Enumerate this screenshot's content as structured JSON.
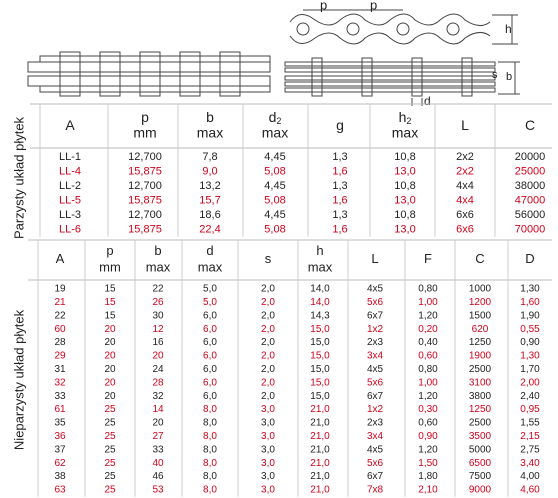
{
  "drawing": {
    "labels": [
      "p",
      "p",
      "h",
      "s",
      "b",
      "d"
    ]
  },
  "table1": {
    "side_label": "Parzysty układ płytek",
    "header": [
      {
        "main": "A"
      },
      {
        "main": "p",
        "unit": "mm"
      },
      {
        "main": "b",
        "unit": "max"
      },
      {
        "main": "d",
        "sub": "2",
        "unit": "max"
      },
      {
        "main": "g"
      },
      {
        "main": "h",
        "sub": "2",
        "unit": "max"
      },
      {
        "main": "L"
      },
      {
        "main": "C"
      }
    ],
    "rows": [
      {
        "color": "#222",
        "cells": [
          "LL-1",
          "12,700",
          "7,8",
          "4,45",
          "1,3",
          "10,8",
          "2x2",
          "20000"
        ]
      },
      {
        "color": "#d0021b",
        "cells": [
          "LL-4",
          "15,875",
          "9,0",
          "5,08",
          "1,6",
          "13,0",
          "2x2",
          "25000"
        ]
      },
      {
        "color": "#222",
        "cells": [
          "LL-2",
          "12,700",
          "13,2",
          "4,45",
          "1,3",
          "10,8",
          "4x4",
          "38000"
        ]
      },
      {
        "color": "#d0021b",
        "cells": [
          "LL-5",
          "15,875",
          "15,7",
          "5,08",
          "1,6",
          "13,0",
          "4x4",
          "47000"
        ]
      },
      {
        "color": "#222",
        "cells": [
          "LL-3",
          "12,700",
          "18,6",
          "4,45",
          "1,3",
          "10,8",
          "6x6",
          "56000"
        ]
      },
      {
        "color": "#d0021b",
        "cells": [
          "LL-6",
          "15,875",
          "22,4",
          "5,08",
          "1,6",
          "13,0",
          "6x6",
          "70000"
        ]
      }
    ]
  },
  "table2": {
    "side_label": "Nieparzysty układ płytek",
    "header": [
      {
        "main": "A"
      },
      {
        "main": "p",
        "unit": "mm"
      },
      {
        "main": "b",
        "unit": "max"
      },
      {
        "main": "d",
        "unit": "max"
      },
      {
        "main": "s"
      },
      {
        "main": "h",
        "unit": "max"
      },
      {
        "main": "L"
      },
      {
        "main": "F"
      },
      {
        "main": "C"
      },
      {
        "main": "D"
      }
    ],
    "rows": [
      {
        "color": "#222",
        "cells": [
          "19",
          "15",
          "22",
          "5,0",
          "2,0",
          "14,0",
          "4x5",
          "0,80",
          "1000",
          "1,30"
        ]
      },
      {
        "color": "#d0021b",
        "cells": [
          "21",
          "15",
          "26",
          "5,0",
          "2,0",
          "14,0",
          "5x6",
          "1,00",
          "1200",
          "1,60"
        ]
      },
      {
        "color": "#222",
        "cells": [
          "22",
          "15",
          "30",
          "6,0",
          "2,0",
          "14,3",
          "6x7",
          "1,20",
          "1500",
          "1,90"
        ]
      },
      {
        "color": "#d0021b",
        "cells": [
          "60",
          "20",
          "12",
          "6,0",
          "2,0",
          "15,0",
          "1x2",
          "0,20",
          "620",
          "0,55"
        ]
      },
      {
        "color": "#222",
        "cells": [
          "28",
          "20",
          "16",
          "6,0",
          "2,0",
          "15,0",
          "2x3",
          "0,40",
          "1250",
          "0,90"
        ]
      },
      {
        "color": "#d0021b",
        "cells": [
          "29",
          "20",
          "20",
          "6,0",
          "2,0",
          "15,0",
          "3x4",
          "0,60",
          "1900",
          "1,30"
        ]
      },
      {
        "color": "#222",
        "cells": [
          "31",
          "20",
          "24",
          "6,0",
          "2,0",
          "15,0",
          "4x5",
          "0,80",
          "2500",
          "1,70"
        ]
      },
      {
        "color": "#d0021b",
        "cells": [
          "32",
          "20",
          "28",
          "6,0",
          "2,0",
          "15,0",
          "5x6",
          "1,00",
          "3100",
          "2,00"
        ]
      },
      {
        "color": "#222",
        "cells": [
          "33",
          "20",
          "32",
          "6,0",
          "2,0",
          "15,0",
          "6x7",
          "1,20",
          "3800",
          "2,40"
        ]
      },
      {
        "color": "#d0021b",
        "cells": [
          "61",
          "25",
          "14",
          "8,0",
          "3,0",
          "21,0",
          "1x2",
          "0,30",
          "1250",
          "0,95"
        ]
      },
      {
        "color": "#222",
        "cells": [
          "35",
          "25",
          "20",
          "8,0",
          "3,0",
          "21,0",
          "2x3",
          "0,60",
          "2500",
          "1,55"
        ]
      },
      {
        "color": "#d0021b",
        "cells": [
          "36",
          "25",
          "27",
          "8,0",
          "3,0",
          "21,0",
          "3x4",
          "0,90",
          "3500",
          "2,15"
        ]
      },
      {
        "color": "#222",
        "cells": [
          "37",
          "25",
          "33",
          "8,0",
          "3,0",
          "21,0",
          "4x5",
          "1,20",
          "5000",
          "2,75"
        ]
      },
      {
        "color": "#d0021b",
        "cells": [
          "62",
          "25",
          "40",
          "8,0",
          "3,0",
          "21,0",
          "5x6",
          "1,50",
          "6500",
          "3,40"
        ]
      },
      {
        "color": "#222",
        "cells": [
          "38",
          "25",
          "46",
          "8,0",
          "3,0",
          "21,0",
          "6x7",
          "1,80",
          "7500",
          "4,00"
        ]
      },
      {
        "color": "#d0021b",
        "cells": [
          "63",
          "25",
          "53",
          "8,0",
          "3,0",
          "21,0",
          "7x8",
          "2,10",
          "9000",
          "4,60"
        ]
      }
    ]
  }
}
